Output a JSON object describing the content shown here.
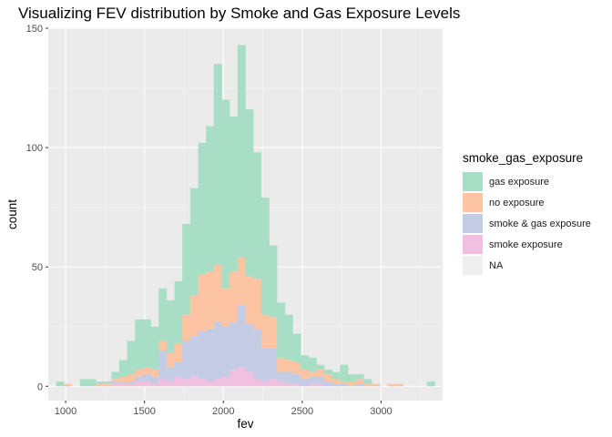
{
  "title": "Visualizing FEV distribution by Smoke and Gas Exposure Levels",
  "chart_data": {
    "type": "bar",
    "stacked": true,
    "xlabel": "fev",
    "ylabel": "count",
    "xlim": [
      890,
      3390
    ],
    "ylim": [
      -6,
      150
    ],
    "xticks": [
      1000,
      1500,
      2000,
      2500,
      3000
    ],
    "yticks": [
      0,
      50,
      100,
      150
    ],
    "grid": true,
    "legend_position": "right",
    "legend_title": "smoke_gas_exposure",
    "bins_start": [
      940,
      990,
      1040,
      1090,
      1140,
      1190,
      1240,
      1290,
      1340,
      1390,
      1440,
      1490,
      1540,
      1590,
      1640,
      1690,
      1740,
      1790,
      1840,
      1890,
      1940,
      1990,
      2040,
      2090,
      2140,
      2190,
      2240,
      2290,
      2340,
      2390,
      2440,
      2490,
      2540,
      2590,
      2640,
      2690,
      2740,
      2790,
      2840,
      2890,
      2940,
      2990,
      3040,
      3090,
      3140,
      3190,
      3240,
      3290,
      3340
    ],
    "bin_width": 50,
    "series": [
      {
        "name": "smoke exposure",
        "color": "#F1BFDF",
        "values": [
          0,
          0,
          0,
          0,
          0,
          0,
          0,
          1,
          1,
          1,
          2,
          2,
          1,
          3,
          2,
          4,
          3,
          4,
          3,
          2,
          3,
          4,
          7,
          8,
          6,
          3,
          2,
          3,
          2,
          1,
          1,
          0,
          1,
          1,
          0,
          0,
          0,
          0,
          0,
          0,
          0,
          0,
          0,
          0,
          0,
          0,
          0,
          0,
          0
        ]
      },
      {
        "name": "smoke & gas exposure",
        "color": "#C3CBE5",
        "values": [
          0,
          0,
          0,
          0,
          0,
          0,
          0,
          1,
          1,
          1,
          2,
          3,
          3,
          12,
          6,
          6,
          16,
          17,
          20,
          22,
          24,
          21,
          20,
          26,
          20,
          21,
          14,
          13,
          4,
          5,
          4,
          3,
          3,
          3,
          2,
          1,
          1,
          0,
          1,
          0,
          0,
          0,
          0,
          0,
          0,
          0,
          0,
          0,
          0
        ]
      },
      {
        "name": "no exposure",
        "color": "#FCC4A2",
        "values": [
          0,
          1,
          0,
          0,
          0,
          1,
          1,
          1,
          2,
          3,
          3,
          3,
          3,
          4,
          6,
          8,
          11,
          17,
          24,
          24,
          24,
          16,
          21,
          20,
          20,
          21,
          14,
          13,
          6,
          5,
          5,
          4,
          2,
          3,
          3,
          2,
          1,
          2,
          2,
          1,
          1,
          0,
          1,
          1,
          0,
          0,
          0,
          0,
          0
        ]
      },
      {
        "name": "gas exposure",
        "color": "#A8DEC5",
        "values": [
          2,
          0,
          0,
          3,
          3,
          1,
          1,
          3,
          7,
          14,
          21,
          20,
          18,
          22,
          22,
          26,
          38,
          45,
          55,
          61,
          84,
          79,
          65,
          89,
          70,
          53,
          49,
          30,
          23,
          19,
          12,
          6,
          6,
          2,
          2,
          3,
          7,
          3,
          2,
          2,
          0,
          0,
          0,
          0,
          0,
          0,
          0,
          2,
          0
        ]
      },
      {
        "name": "NA",
        "color": "#EFEFEF",
        "values": [
          0,
          0,
          0,
          0,
          0,
          0,
          0,
          0,
          0,
          0,
          0,
          0,
          0,
          0,
          0,
          0,
          0,
          0,
          0,
          0,
          0,
          0,
          0,
          0,
          0,
          0,
          0,
          0,
          0,
          0,
          0,
          0,
          0,
          0,
          0,
          0,
          0,
          0,
          0,
          0,
          0,
          0,
          0,
          0,
          0,
          0,
          0,
          0,
          0
        ]
      }
    ]
  },
  "legend": [
    {
      "label": "gas exposure",
      "color": "#A8DEC5"
    },
    {
      "label": "no exposure",
      "color": "#FCC4A2"
    },
    {
      "label": "smoke & gas exposure",
      "color": "#C3CBE5"
    },
    {
      "label": "smoke exposure",
      "color": "#F1BFDF"
    },
    {
      "label": "NA",
      "color": "#EFEFEF"
    }
  ]
}
